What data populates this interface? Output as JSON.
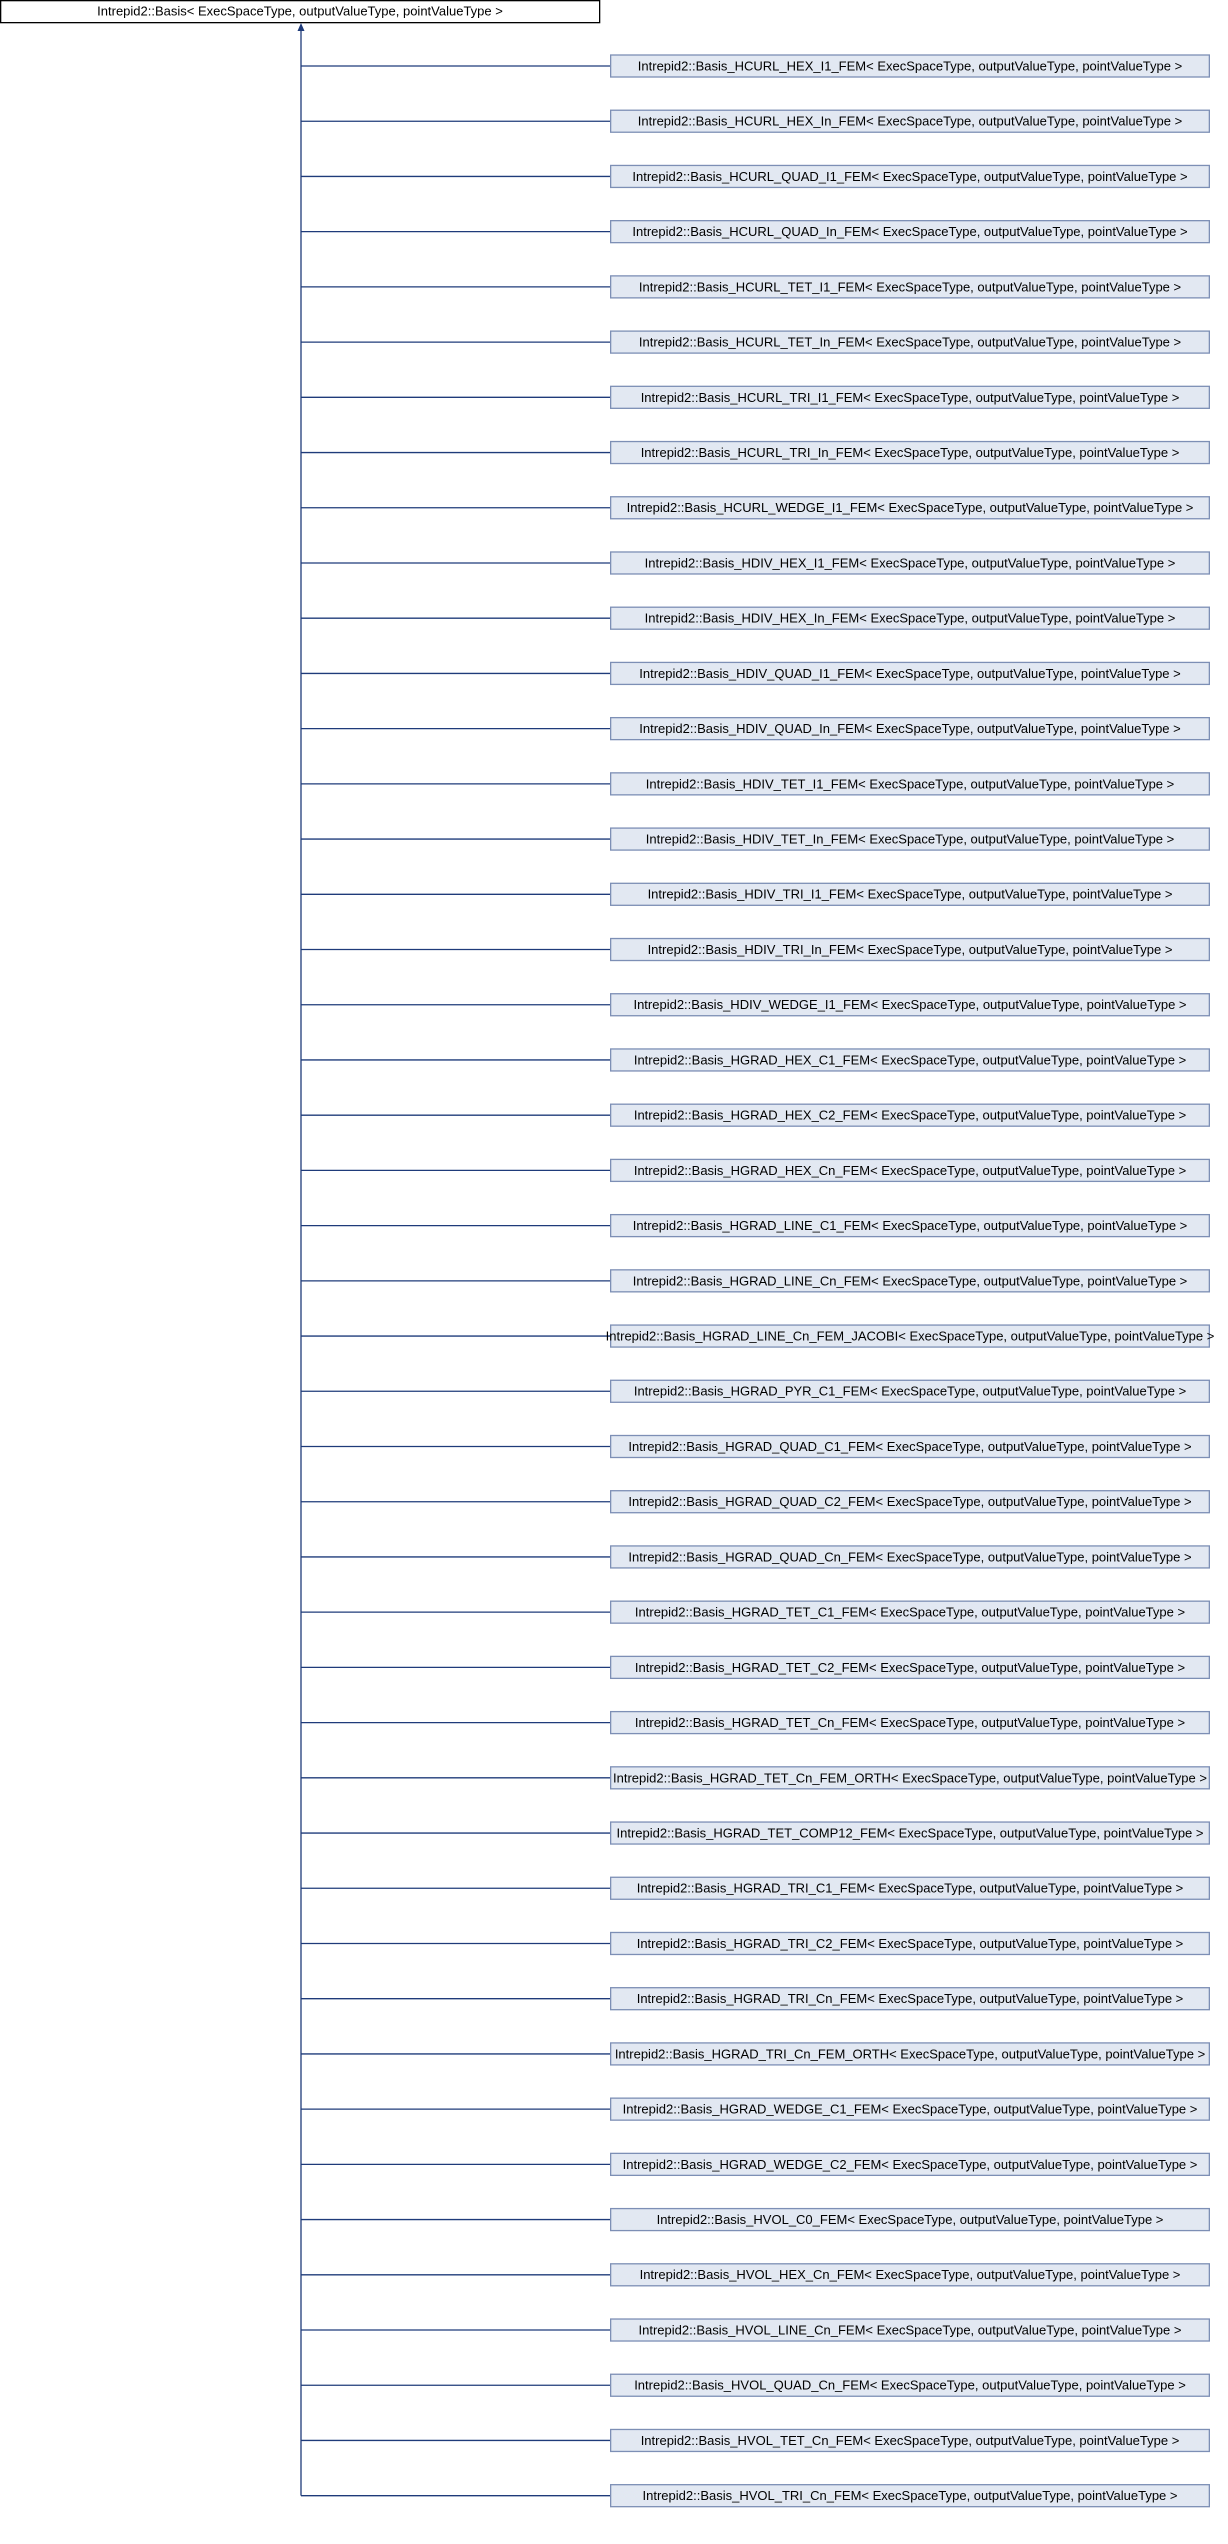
{
  "diagram": {
    "root": {
      "label": "Intrepid2::Basis< ExecSpaceType, outputValueType, pointValueType >"
    },
    "nodes": [
      {
        "label": "Intrepid2::Basis_HCURL_HEX_I1_FEM< ExecSpaceType, outputValueType, pointValueType >"
      },
      {
        "label": "Intrepid2::Basis_HCURL_HEX_In_FEM< ExecSpaceType, outputValueType, pointValueType >"
      },
      {
        "label": "Intrepid2::Basis_HCURL_QUAD_I1_FEM< ExecSpaceType, outputValueType, pointValueType >"
      },
      {
        "label": "Intrepid2::Basis_HCURL_QUAD_In_FEM< ExecSpaceType, outputValueType, pointValueType >"
      },
      {
        "label": "Intrepid2::Basis_HCURL_TET_I1_FEM< ExecSpaceType, outputValueType, pointValueType >"
      },
      {
        "label": "Intrepid2::Basis_HCURL_TET_In_FEM< ExecSpaceType, outputValueType, pointValueType >"
      },
      {
        "label": "Intrepid2::Basis_HCURL_TRI_I1_FEM< ExecSpaceType, outputValueType, pointValueType >"
      },
      {
        "label": "Intrepid2::Basis_HCURL_TRI_In_FEM< ExecSpaceType, outputValueType, pointValueType >"
      },
      {
        "label": "Intrepid2::Basis_HCURL_WEDGE_I1_FEM< ExecSpaceType, outputValueType, pointValueType >"
      },
      {
        "label": "Intrepid2::Basis_HDIV_HEX_I1_FEM< ExecSpaceType, outputValueType, pointValueType >"
      },
      {
        "label": "Intrepid2::Basis_HDIV_HEX_In_FEM< ExecSpaceType, outputValueType, pointValueType >"
      },
      {
        "label": "Intrepid2::Basis_HDIV_QUAD_I1_FEM< ExecSpaceType, outputValueType, pointValueType >"
      },
      {
        "label": "Intrepid2::Basis_HDIV_QUAD_In_FEM< ExecSpaceType, outputValueType, pointValueType >"
      },
      {
        "label": "Intrepid2::Basis_HDIV_TET_I1_FEM< ExecSpaceType, outputValueType, pointValueType >"
      },
      {
        "label": "Intrepid2::Basis_HDIV_TET_In_FEM< ExecSpaceType, outputValueType, pointValueType >"
      },
      {
        "label": "Intrepid2::Basis_HDIV_TRI_I1_FEM< ExecSpaceType, outputValueType, pointValueType >"
      },
      {
        "label": "Intrepid2::Basis_HDIV_TRI_In_FEM< ExecSpaceType, outputValueType, pointValueType >"
      },
      {
        "label": "Intrepid2::Basis_HDIV_WEDGE_I1_FEM< ExecSpaceType, outputValueType, pointValueType >"
      },
      {
        "label": "Intrepid2::Basis_HGRAD_HEX_C1_FEM< ExecSpaceType, outputValueType, pointValueType >"
      },
      {
        "label": "Intrepid2::Basis_HGRAD_HEX_C2_FEM< ExecSpaceType, outputValueType, pointValueType >"
      },
      {
        "label": "Intrepid2::Basis_HGRAD_HEX_Cn_FEM< ExecSpaceType, outputValueType, pointValueType >"
      },
      {
        "label": "Intrepid2::Basis_HGRAD_LINE_C1_FEM< ExecSpaceType, outputValueType, pointValueType >"
      },
      {
        "label": "Intrepid2::Basis_HGRAD_LINE_Cn_FEM< ExecSpaceType, outputValueType, pointValueType >"
      },
      {
        "label": "Intrepid2::Basis_HGRAD_LINE_Cn_FEM_JACOBI< ExecSpaceType, outputValueType, pointValueType >"
      },
      {
        "label": "Intrepid2::Basis_HGRAD_PYR_C1_FEM< ExecSpaceType, outputValueType, pointValueType >"
      },
      {
        "label": "Intrepid2::Basis_HGRAD_QUAD_C1_FEM< ExecSpaceType, outputValueType, pointValueType >"
      },
      {
        "label": "Intrepid2::Basis_HGRAD_QUAD_C2_FEM< ExecSpaceType, outputValueType, pointValueType >"
      },
      {
        "label": "Intrepid2::Basis_HGRAD_QUAD_Cn_FEM< ExecSpaceType, outputValueType, pointValueType >"
      },
      {
        "label": "Intrepid2::Basis_HGRAD_TET_C1_FEM< ExecSpaceType, outputValueType, pointValueType >"
      },
      {
        "label": "Intrepid2::Basis_HGRAD_TET_C2_FEM< ExecSpaceType, outputValueType, pointValueType >"
      },
      {
        "label": "Intrepid2::Basis_HGRAD_TET_Cn_FEM< ExecSpaceType, outputValueType, pointValueType >"
      },
      {
        "label": "Intrepid2::Basis_HGRAD_TET_Cn_FEM_ORTH< ExecSpaceType, outputValueType, pointValueType >"
      },
      {
        "label": "Intrepid2::Basis_HGRAD_TET_COMP12_FEM< ExecSpaceType, outputValueType, pointValueType >"
      },
      {
        "label": "Intrepid2::Basis_HGRAD_TRI_C1_FEM< ExecSpaceType, outputValueType, pointValueType >"
      },
      {
        "label": "Intrepid2::Basis_HGRAD_TRI_C2_FEM< ExecSpaceType, outputValueType, pointValueType >"
      },
      {
        "label": "Intrepid2::Basis_HGRAD_TRI_Cn_FEM< ExecSpaceType, outputValueType, pointValueType >"
      },
      {
        "label": "Intrepid2::Basis_HGRAD_TRI_Cn_FEM_ORTH< ExecSpaceType, outputValueType, pointValueType >"
      },
      {
        "label": "Intrepid2::Basis_HGRAD_WEDGE_C1_FEM< ExecSpaceType, outputValueType, pointValueType >"
      },
      {
        "label": "Intrepid2::Basis_HGRAD_WEDGE_C2_FEM< ExecSpaceType, outputValueType, pointValueType >"
      },
      {
        "label": "Intrepid2::Basis_HVOL_C0_FEM< ExecSpaceType, outputValueType, pointValueType >"
      },
      {
        "label": "Intrepid2::Basis_HVOL_HEX_Cn_FEM< ExecSpaceType, outputValueType, pointValueType >"
      },
      {
        "label": "Intrepid2::Basis_HVOL_LINE_Cn_FEM< ExecSpaceType, outputValueType, pointValueType >"
      },
      {
        "label": "Intrepid2::Basis_HVOL_QUAD_Cn_FEM< ExecSpaceType, outputValueType, pointValueType >"
      },
      {
        "label": "Intrepid2::Basis_HVOL_TET_Cn_FEM< ExecSpaceType, outputValueType, pointValueType >"
      },
      {
        "label": "Intrepid2::Basis_HVOL_TRI_Cn_FEM< ExecSpaceType, outputValueType, pointValueType >"
      }
    ]
  }
}
